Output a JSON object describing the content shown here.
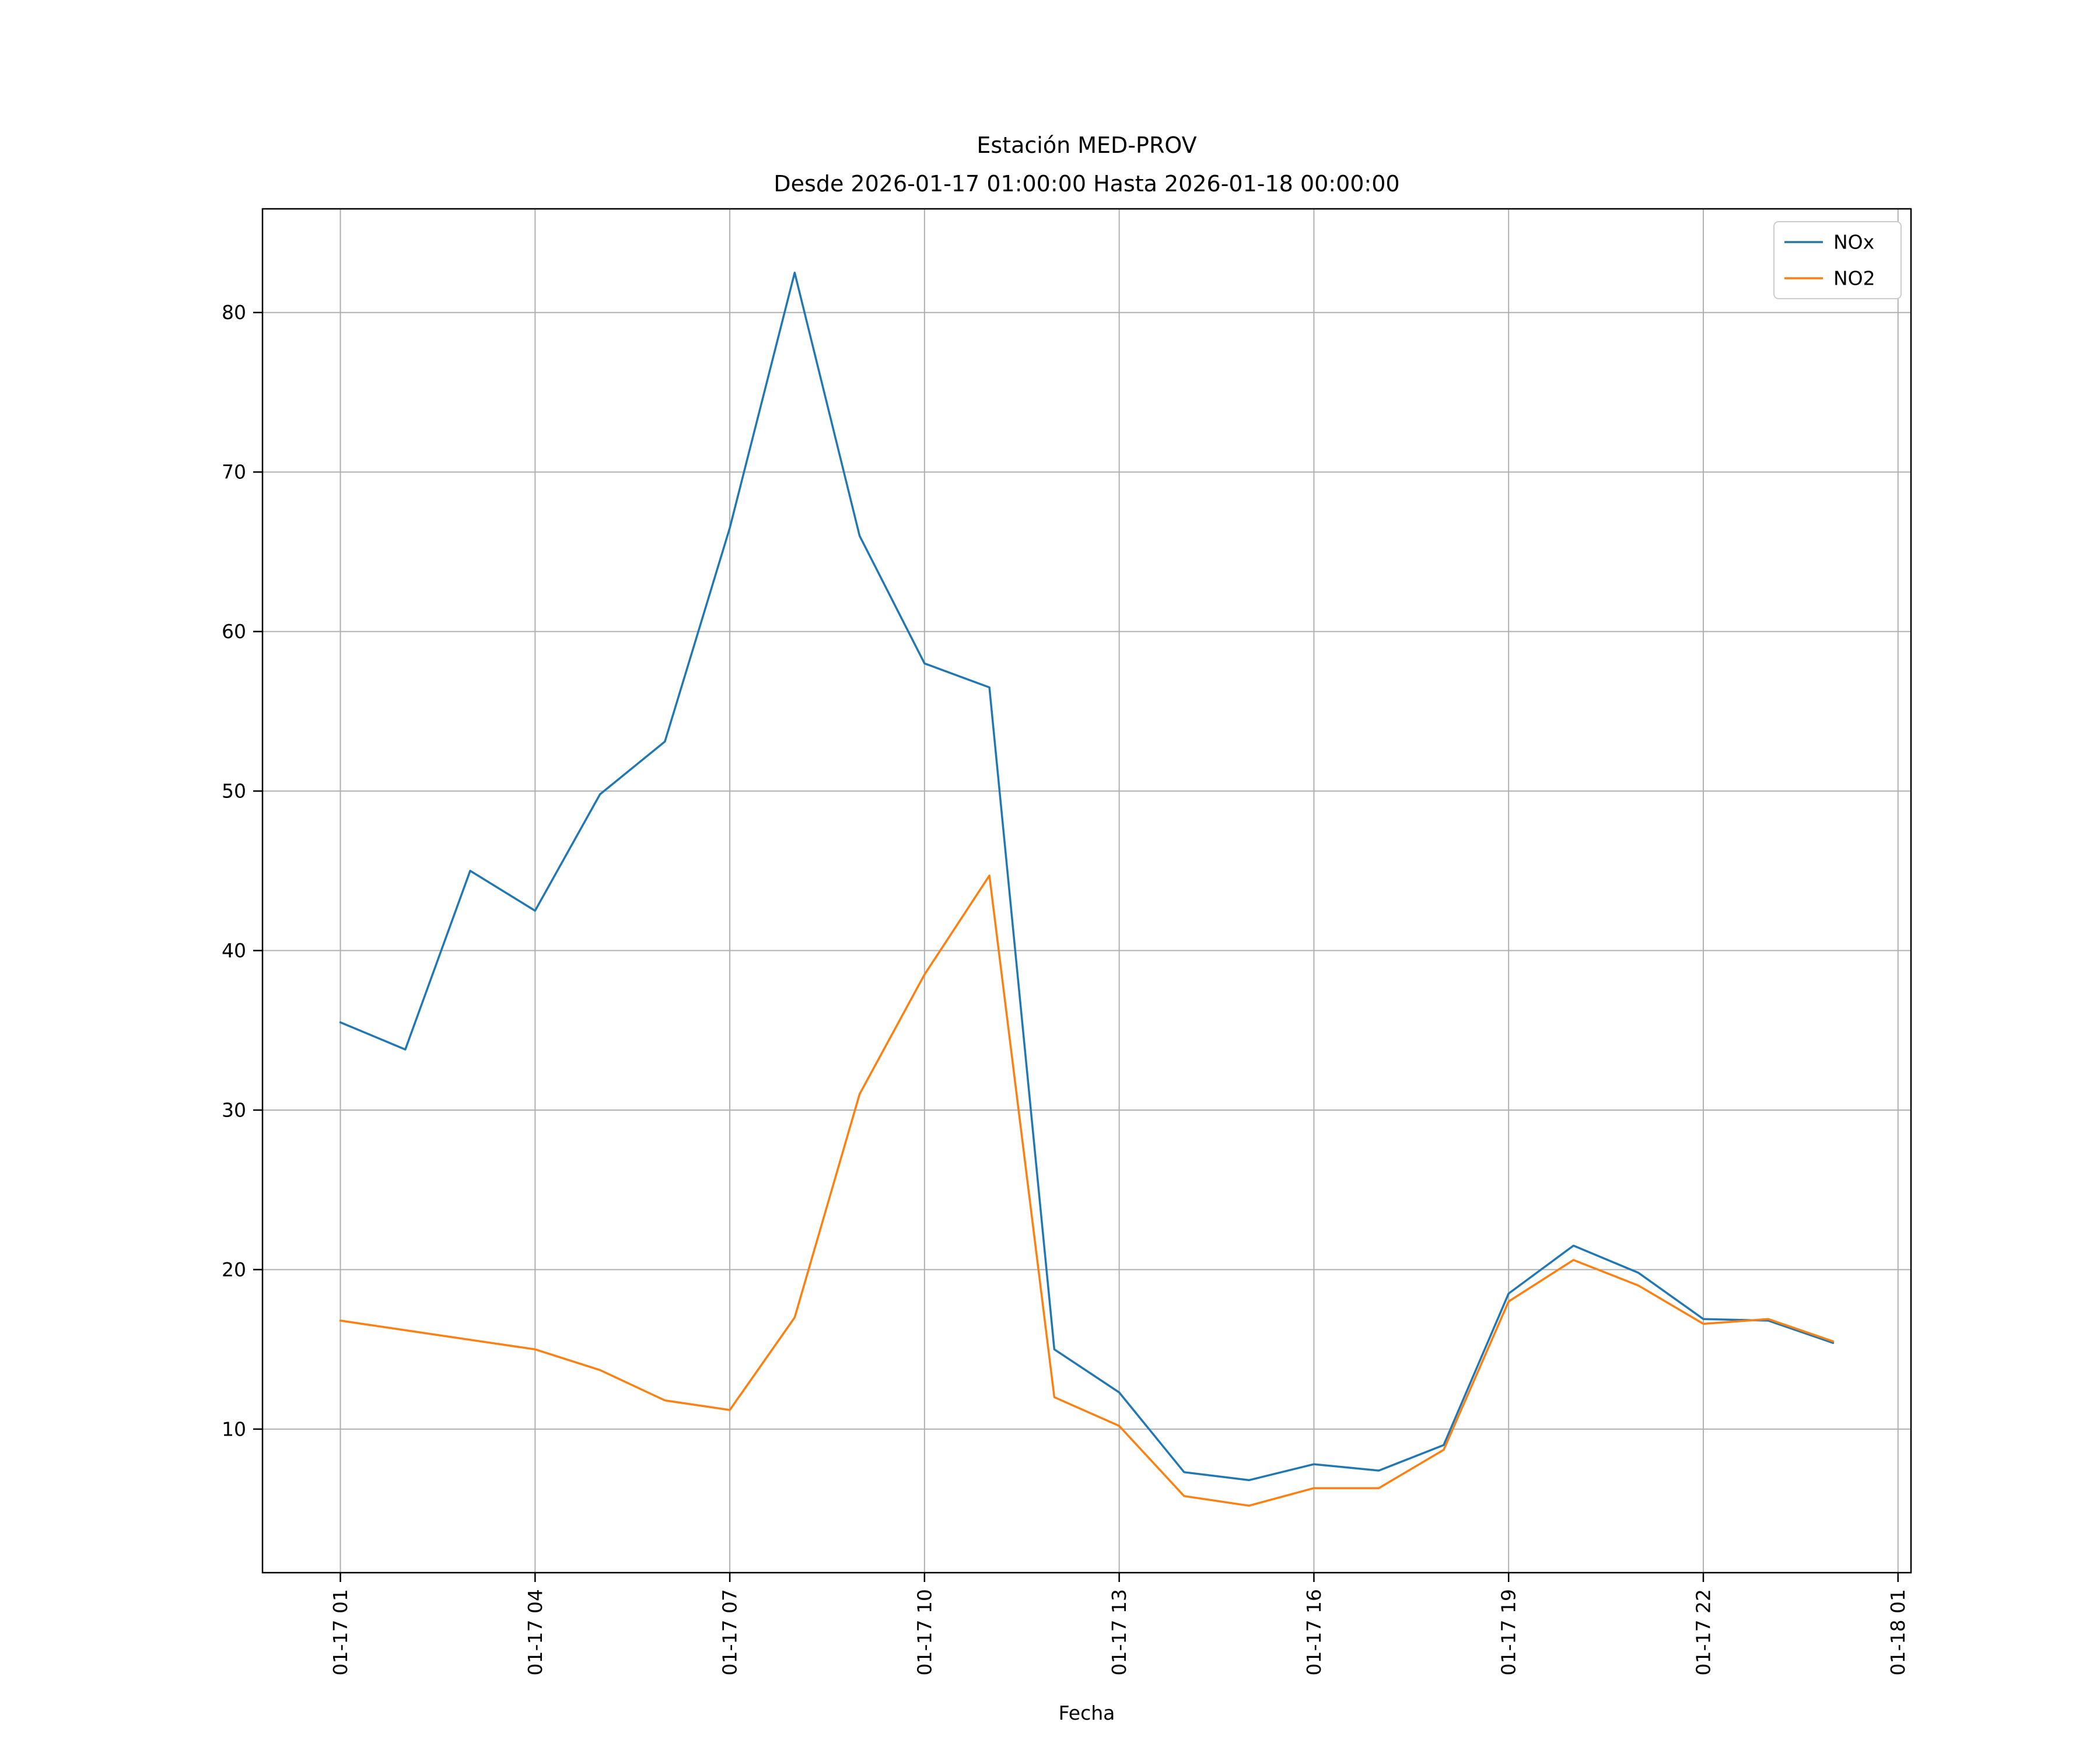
{
  "chart_data": {
    "type": "line",
    "title": "Estación MED-PROV",
    "subtitle": "Desde 2026-01-17 01:00:00 Hasta 2026-01-18 00:00:00",
    "xlabel": "Fecha",
    "ylabel": "",
    "grid": true,
    "grid_color": "#b0b0b0",
    "background_color": "#ffffff",
    "x_hours": [
      1,
      2,
      3,
      4,
      5,
      6,
      7,
      8,
      9,
      10,
      11,
      12,
      13,
      14,
      15,
      16,
      17,
      18,
      19,
      20,
      21,
      22,
      23,
      24
    ],
    "series": [
      {
        "name": "NOx",
        "color": "#1f77b4",
        "values": [
          35.5,
          33.8,
          45.0,
          42.5,
          49.8,
          53.1,
          66.5,
          82.5,
          66.0,
          58.0,
          56.5,
          15.0,
          12.3,
          7.3,
          6.8,
          7.8,
          7.4,
          9.0,
          18.5,
          21.5,
          19.8,
          16.9,
          16.8,
          15.4
        ]
      },
      {
        "name": "NO2",
        "color": "#ff7f0e",
        "values": [
          16.8,
          16.2,
          15.6,
          15.0,
          13.7,
          11.8,
          11.2,
          17.0,
          31.0,
          38.5,
          44.7,
          12.0,
          10.2,
          5.8,
          5.2,
          6.3,
          6.3,
          8.7,
          18.0,
          20.6,
          19.0,
          16.6,
          16.9,
          15.5
        ]
      }
    ],
    "x_tick_hours": [
      1,
      4,
      7,
      10,
      13,
      16,
      19,
      22,
      25
    ],
    "x_tick_labels": [
      "01-17 01",
      "01-17 04",
      "01-17 07",
      "01-17 10",
      "01-17 13",
      "01-17 16",
      "01-17 19",
      "01-17 22",
      "01-18 01"
    ],
    "y_ticks": [
      10,
      20,
      30,
      40,
      50,
      60,
      70,
      80
    ],
    "xlim": [
      -0.2,
      25.2
    ],
    "ylim": [
      1,
      86.5
    ],
    "legend": {
      "position": "upper right",
      "entries": [
        "NOx",
        "NO2"
      ],
      "border_color": "#cccccc"
    }
  }
}
